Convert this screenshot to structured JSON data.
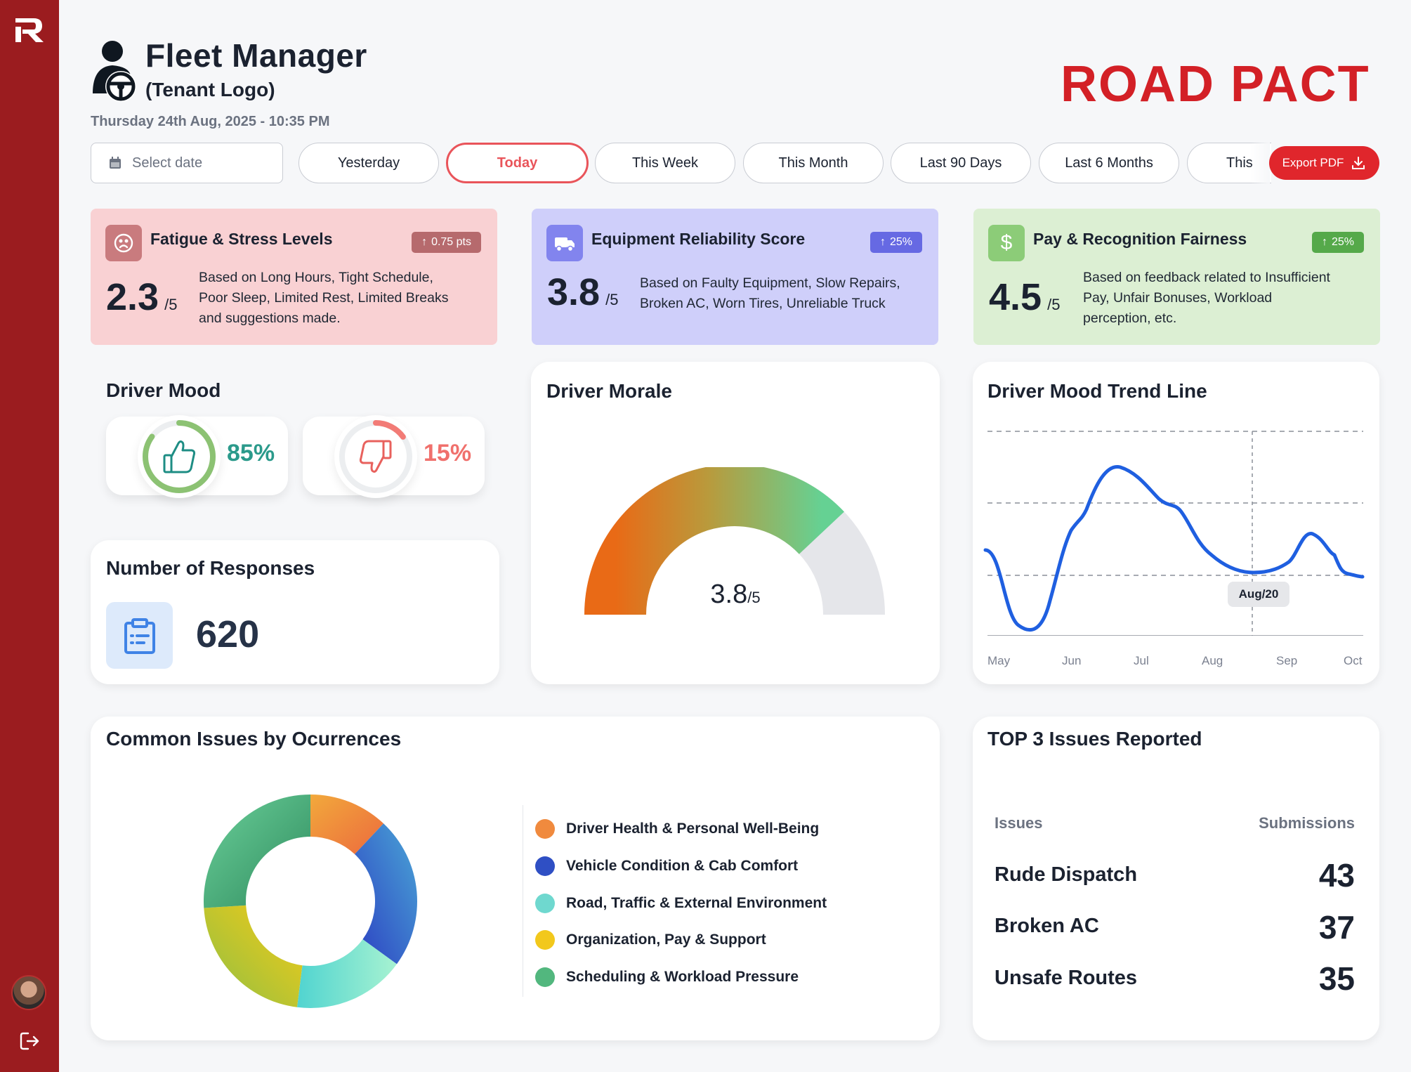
{
  "header": {
    "title": "Fleet Manager",
    "subtitle": "(Tenant Logo)",
    "datetime": "Thursday 24th Aug, 2025 - 10:35 PM",
    "brand": "ROAD PACT"
  },
  "filters": {
    "date_placeholder": "Select date",
    "options": [
      "Yesterday",
      "Today",
      "This Week",
      "This Month",
      "Last 90 Days",
      "Last 6 Months",
      "This"
    ],
    "selected": "Today",
    "export_label": "Export PDF"
  },
  "kpis": [
    {
      "title": "Fatigue & Stress Levels",
      "badge": "0.75 pts",
      "value": "2.3",
      "of": "/5",
      "desc_lines": [
        "Based on Long Hours, Tight Schedule,",
        "Poor Sleep, Limited Rest, Limited Breaks",
        "and suggestions made."
      ],
      "bg": "#f9d1d3",
      "icon_bg": "#c97b7e",
      "badge_bg": "#b66a6d"
    },
    {
      "title": "Equipment Reliability Score",
      "badge": "25%",
      "value": "3.8",
      "of": "/5",
      "desc_lines": [
        "Based on Faulty Equipment, Slow Repairs,",
        "Broken AC, Worn Tires, Unreliable Truck"
      ],
      "bg": "#cfcffa",
      "icon_bg": "#8284ee",
      "badge_bg": "#6669e3"
    },
    {
      "title": "Pay & Recognition Fairness",
      "badge": "25%",
      "value": "4.5",
      "of": "/5",
      "desc_lines": [
        "Based on feedback related to Insufficient",
        "Pay, Unfair Bonuses, Workload",
        "perception, etc."
      ],
      "bg": "#dcefd3",
      "icon_bg": "#8ccc78",
      "badge_bg": "#55a94a"
    }
  ],
  "driver_mood": {
    "title": "Driver Mood",
    "positive_pct": "85%",
    "negative_pct": "15%",
    "positive_value": 85,
    "negative_value": 15
  },
  "responses": {
    "title": "Number of Responses",
    "count": "620"
  },
  "morale": {
    "title": "Driver Morale",
    "value": "3.8",
    "of": "/5",
    "value_num": 3.8,
    "max": 5
  },
  "trend": {
    "title": "Driver Mood Trend Line",
    "months": [
      "May",
      "Jun",
      "Jul",
      "Aug",
      "Sep",
      "Oct"
    ],
    "marker_label": "Aug/20",
    "chart_data": {
      "type": "line",
      "x": [
        "May",
        "Jun",
        "Jul",
        "Aug",
        "Sep",
        "Oct"
      ],
      "ylim": [
        0,
        4
      ]
    }
  },
  "issues": {
    "title": "Common Issues by Ocurrences",
    "chart_data": {
      "type": "pie",
      "categories": [
        "Driver Health & Personal Well-Being",
        "Vehicle Condition & Cab Comfort",
        "Road, Traffic & External Environment",
        "Organization, Pay & Support",
        "Scheduling & Workload Pressure"
      ],
      "values": [
        12,
        23,
        17,
        22,
        26
      ],
      "colors": [
        "#f08a3e",
        "#2f4fc4",
        "#6fd8cf",
        "#f2c81c",
        "#52b77e"
      ]
    }
  },
  "top3": {
    "title": "TOP 3 Issues Reported",
    "col_issues": "Issues",
    "col_submissions": "Submissions",
    "rows": [
      {
        "issue": "Rude Dispatch",
        "count": "43"
      },
      {
        "issue": "Broken AC",
        "count": "37"
      },
      {
        "issue": "Unsafe Routes",
        "count": "35"
      }
    ]
  }
}
